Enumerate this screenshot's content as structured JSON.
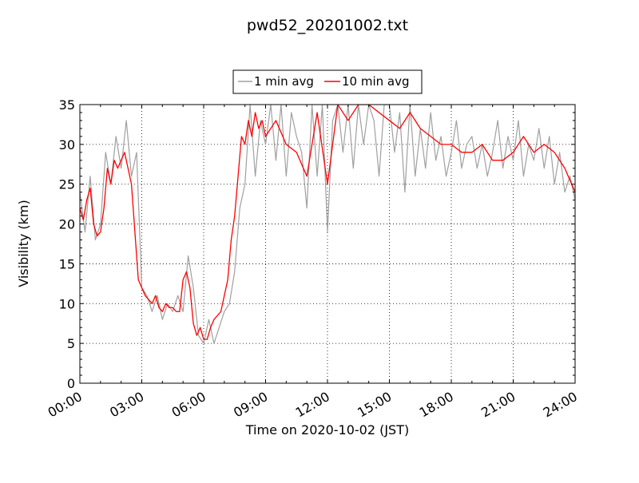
{
  "chart_data": {
    "type": "line",
    "title": "pwd52_20201002.txt",
    "xlabel": "Time on 2020-10-02 (JST)",
    "ylabel": "Visibility (km)",
    "xlim": [
      "00:00",
      "24:00"
    ],
    "ylim": [
      0,
      35
    ],
    "x_ticks": [
      "00:00",
      "03:00",
      "06:00",
      "09:00",
      "12:00",
      "15:00",
      "18:00",
      "21:00",
      "24:00"
    ],
    "y_ticks": [
      0,
      5,
      10,
      15,
      20,
      25,
      30,
      35
    ],
    "grid": true,
    "legend_position": "top-center, above plot",
    "series": [
      {
        "name": "1 min avg",
        "color": "#a0a0a0",
        "x": [
          "00:00",
          "00:15",
          "00:30",
          "00:45",
          "01:00",
          "01:15",
          "01:30",
          "01:45",
          "02:00",
          "02:15",
          "02:30",
          "02:45",
          "03:00",
          "03:15",
          "03:30",
          "03:45",
          "04:00",
          "04:15",
          "04:30",
          "04:45",
          "05:00",
          "05:15",
          "05:30",
          "05:45",
          "06:00",
          "06:15",
          "06:30",
          "06:45",
          "07:00",
          "07:15",
          "07:30",
          "07:45",
          "08:00",
          "08:15",
          "08:30",
          "08:45",
          "09:00",
          "09:15",
          "09:30",
          "09:45",
          "10:00",
          "10:15",
          "10:30",
          "10:45",
          "11:00",
          "11:15",
          "11:30",
          "11:45",
          "12:00",
          "12:15",
          "12:30",
          "12:45",
          "13:00",
          "13:15",
          "13:30",
          "13:45",
          "14:00",
          "14:15",
          "14:30",
          "14:45",
          "15:00",
          "15:15",
          "15:30",
          "15:45",
          "16:00",
          "16:15",
          "16:30",
          "16:45",
          "17:00",
          "17:15",
          "17:30",
          "17:45",
          "18:00",
          "18:15",
          "18:30",
          "18:45",
          "19:00",
          "19:15",
          "19:30",
          "19:45",
          "20:00",
          "20:15",
          "20:30",
          "20:45",
          "21:00",
          "21:15",
          "21:30",
          "21:45",
          "22:00",
          "22:15",
          "22:30",
          "22:45",
          "23:00",
          "23:15",
          "23:30",
          "23:45",
          "24:00"
        ],
        "values": [
          24,
          19,
          26,
          18,
          20,
          29,
          25,
          31,
          27,
          33,
          26,
          29,
          12,
          11,
          9,
          11,
          8,
          10,
          9,
          11,
          9,
          16,
          12,
          6,
          5,
          8,
          5,
          7,
          9,
          10,
          14,
          22,
          25,
          35,
          26,
          33,
          30,
          35,
          28,
          35,
          26,
          34,
          31,
          29,
          22,
          35,
          26,
          35,
          19,
          33,
          35,
          29,
          35,
          27,
          35,
          30,
          35,
          33,
          26,
          35,
          35,
          29,
          34,
          24,
          35,
          26,
          32,
          27,
          34,
          28,
          31,
          26,
          29,
          33,
          27,
          30,
          31,
          27,
          30,
          26,
          29,
          33,
          27,
          31,
          28,
          33,
          26,
          30,
          28,
          32,
          27,
          31,
          25,
          29,
          24,
          26,
          23
        ]
      },
      {
        "name": "10 min avg",
        "color": "#ff0000",
        "x": [
          "00:00",
          "00:10",
          "00:20",
          "00:30",
          "00:40",
          "00:50",
          "01:00",
          "01:10",
          "01:20",
          "01:30",
          "01:40",
          "01:50",
          "02:00",
          "02:10",
          "02:20",
          "02:30",
          "02:40",
          "02:50",
          "03:00",
          "03:10",
          "03:20",
          "03:30",
          "03:40",
          "03:50",
          "04:00",
          "04:10",
          "04:20",
          "04:30",
          "04:40",
          "04:50",
          "05:00",
          "05:10",
          "05:20",
          "05:30",
          "05:40",
          "05:50",
          "06:00",
          "06:10",
          "06:20",
          "06:30",
          "06:40",
          "06:50",
          "07:00",
          "07:10",
          "07:20",
          "07:30",
          "07:40",
          "07:50",
          "08:00",
          "08:10",
          "08:20",
          "08:30",
          "08:40",
          "08:50",
          "09:00",
          "09:30",
          "10:00",
          "10:30",
          "11:00",
          "11:30",
          "12:00",
          "12:30",
          "13:00",
          "13:30",
          "14:00",
          "14:30",
          "15:00",
          "15:30",
          "16:00",
          "16:30",
          "17:00",
          "17:30",
          "18:00",
          "18:30",
          "19:00",
          "19:30",
          "20:00",
          "20:30",
          "21:00",
          "21:30",
          "22:00",
          "22:30",
          "23:00",
          "23:30",
          "24:00"
        ],
        "values": [
          22,
          20.5,
          23,
          24.5,
          20,
          18.5,
          19,
          22,
          27,
          25,
          28,
          27,
          28,
          29,
          27,
          25,
          19,
          13,
          12,
          11,
          10.5,
          10,
          11,
          9.5,
          9,
          10,
          9.5,
          9.5,
          9,
          9,
          13,
          14,
          12,
          7.5,
          6,
          7,
          5.5,
          5.5,
          7,
          8,
          8.5,
          9,
          11,
          13,
          18,
          21,
          26,
          31,
          30,
          33,
          31,
          34,
          32,
          33,
          31,
          33,
          30,
          29,
          26,
          34,
          25,
          35,
          33,
          35,
          35,
          34,
          33,
          32,
          34,
          32,
          31,
          30,
          30,
          29,
          29,
          30,
          28,
          28,
          29,
          31,
          29,
          30,
          29,
          27,
          24
        ]
      }
    ]
  }
}
